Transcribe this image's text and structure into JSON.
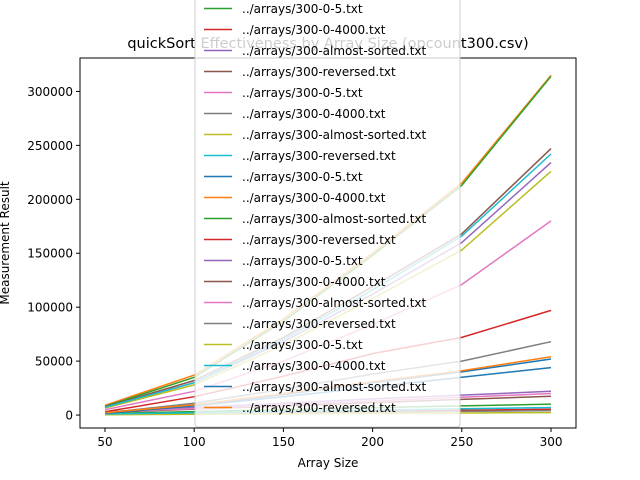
{
  "chart_data": {
    "type": "line",
    "title": "quickSort Effectiveness by Array Size (opcount300.csv)",
    "xlabel": "Array Size",
    "ylabel": "Measurement Result",
    "xlim": [
      36,
      314
    ],
    "ylim": [
      -12000,
      331000
    ],
    "x_ticks": [
      50,
      100,
      150,
      200,
      250,
      300
    ],
    "y_ticks": [
      0,
      50000,
      100000,
      150000,
      200000,
      250000,
      300000
    ],
    "grid": false,
    "legend_placement": "upper center (extends above plot)",
    "x": [
      50,
      100,
      150,
      200,
      250,
      300
    ],
    "series": [
      {
        "name": "../arrays/300-0-5.txt",
        "color": "#2ca02c",
        "values": [
          1500,
          3200,
          5000,
          6800,
          8500,
          10200
        ]
      },
      {
        "name": "../arrays/300-0-4000.txt",
        "color": "#d62728",
        "values": [
          800,
          1700,
          2600,
          3500,
          4400,
          5300
        ]
      },
      {
        "name": "../arrays/300-almost-sorted.txt",
        "color": "#9467bd",
        "values": [
          3000,
          7000,
          11000,
          15000,
          18500,
          22000
        ]
      },
      {
        "name": "../arrays/300-reversed.txt",
        "color": "#8c564b",
        "values": [
          2500,
          5500,
          8500,
          11500,
          14500,
          17500
        ]
      },
      {
        "name": "../arrays/300-0-5.txt",
        "color": "#e377c2",
        "values": [
          2800,
          6000,
          9500,
          13000,
          16500,
          20000
        ]
      },
      {
        "name": "../arrays/300-0-4000.txt",
        "color": "#7f7f7f",
        "values": [
          600,
          1300,
          2000,
          2700,
          3400,
          4100
        ]
      },
      {
        "name": "../arrays/300-almost-sorted.txt",
        "color": "#bcbd22",
        "values": [
          300,
          700,
          1100,
          1500,
          1900,
          2300
        ]
      },
      {
        "name": "../arrays/300-reversed.txt",
        "color": "#17becf",
        "values": [
          1000,
          2200,
          3400,
          4600,
          5800,
          7000
        ]
      },
      {
        "name": "../arrays/300-0-5.txt",
        "color": "#1f77b4",
        "values": [
          1500,
          8500,
          17000,
          26000,
          35000,
          44000
        ]
      },
      {
        "name": "../arrays/300-0-4000.txt",
        "color": "#ff7f0e",
        "values": [
          9000,
          37000,
          89000,
          150000,
          215000,
          315000
        ]
      },
      {
        "name": "../arrays/300-almost-sorted.txt",
        "color": "#2ca02c",
        "values": [
          8000,
          35000,
          87000,
          148000,
          213000,
          314000
        ]
      },
      {
        "name": "../arrays/300-reversed.txt",
        "color": "#d62728",
        "values": [
          3000,
          17000,
          36000,
          57000,
          72000,
          97000
        ]
      },
      {
        "name": "../arrays/300-0-5.txt",
        "color": "#9467bd",
        "values": [
          7000,
          30000,
          68000,
          112000,
          160000,
          234000
        ]
      },
      {
        "name": "../arrays/300-0-4000.txt",
        "color": "#8c564b",
        "values": [
          7500,
          32000,
          72000,
          119000,
          168000,
          247000
        ]
      },
      {
        "name": "../arrays/300-almost-sorted.txt",
        "color": "#e377c2",
        "values": [
          5000,
          22000,
          50000,
          84000,
          121000,
          180000
        ]
      },
      {
        "name": "../arrays/300-reversed.txt",
        "color": "#7f7f7f",
        "values": [
          2000,
          11000,
          24000,
          38000,
          50000,
          68000
        ]
      },
      {
        "name": "../arrays/300-0-5.txt",
        "color": "#bcbd22",
        "values": [
          6500,
          28000,
          65000,
          108000,
          153000,
          226000
        ]
      },
      {
        "name": "../arrays/300-0-4000.txt",
        "color": "#17becf",
        "values": [
          7200,
          30000,
          70000,
          116000,
          166000,
          242000
        ]
      },
      {
        "name": "../arrays/300-almost-sorted.txt",
        "color": "#1f77b4",
        "values": [
          2000,
          9000,
          19000,
          30000,
          40000,
          52000
        ]
      },
      {
        "name": "../arrays/300-reversed.txt",
        "color": "#ff7f0e",
        "values": [
          2200,
          9500,
          20000,
          31000,
          41000,
          54000
        ]
      }
    ]
  }
}
